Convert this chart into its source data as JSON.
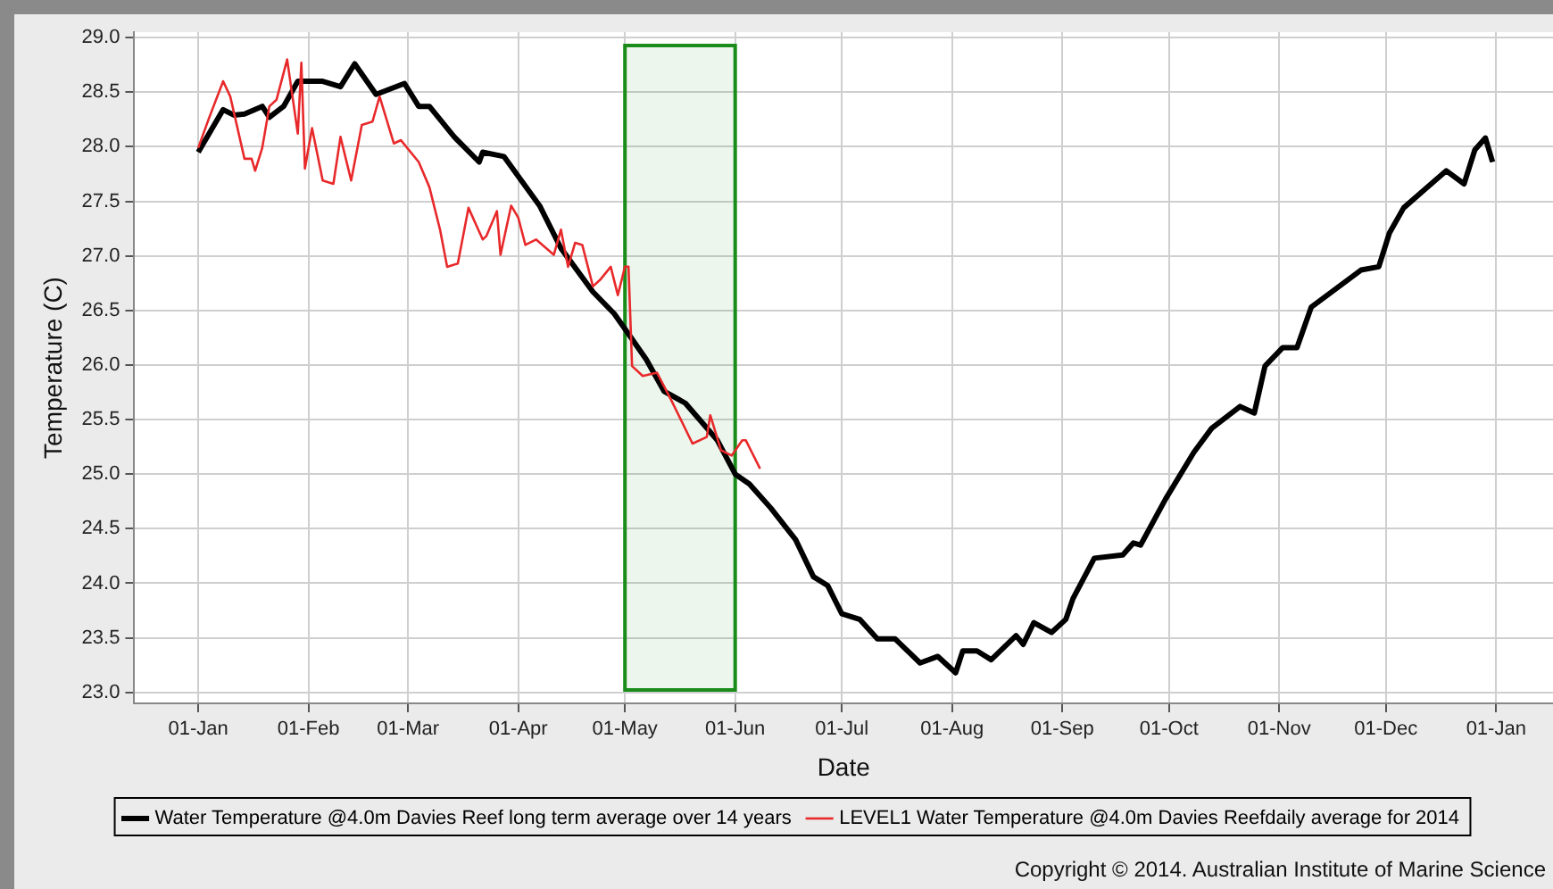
{
  "chart_data": {
    "type": "line",
    "xlabel": "Date",
    "ylabel": "Temperature (C)",
    "xlim": [
      "2013-12-14",
      "2015-01-17"
    ],
    "ylim": [
      22.9,
      29.05
    ],
    "xticks": [
      {
        "value": "2014-01-01",
        "label": "01-Jan"
      },
      {
        "value": "2014-02-01",
        "label": "01-Feb"
      },
      {
        "value": "2014-03-01",
        "label": "01-Mar"
      },
      {
        "value": "2014-04-01",
        "label": "01-Apr"
      },
      {
        "value": "2014-05-01",
        "label": "01-May"
      },
      {
        "value": "2014-06-01",
        "label": "01-Jun"
      },
      {
        "value": "2014-07-01",
        "label": "01-Jul"
      },
      {
        "value": "2014-08-01",
        "label": "01-Aug"
      },
      {
        "value": "2014-09-01",
        "label": "01-Sep"
      },
      {
        "value": "2014-10-01",
        "label": "01-Oct"
      },
      {
        "value": "2014-11-01",
        "label": "01-Nov"
      },
      {
        "value": "2014-12-01",
        "label": "01-Dec"
      },
      {
        "value": "2015-01-01",
        "label": "01-Jan"
      }
    ],
    "yticks": [
      {
        "value": 23,
        "label": "23.0"
      },
      23.5,
      {
        "value": 24,
        "label": "24.0"
      },
      24.5,
      {
        "value": 25,
        "label": "25.0"
      },
      25.5,
      {
        "value": 26,
        "label": "26.0"
      },
      26.5,
      {
        "value": 27,
        "label": "27.0"
      },
      27.5,
      {
        "value": 28,
        "label": "28.0"
      },
      28.5,
      {
        "value": 29,
        "label": "29.0"
      }
    ],
    "grid": true,
    "legend": "bottom",
    "marker": "none",
    "line_style": "solid",
    "bands": [
      {
        "axis": "x",
        "from": "2014-05-01",
        "to": "2014-06-01",
        "color": "#1a8c1a"
      }
    ],
    "annotations": [
      "Copyright © 2014. Australian Institute of Marine Science"
    ],
    "series": [
      {
        "name": "Water Temperature @4.0m Davies Reef long term average over 14 years",
        "color": "#000000",
        "x": [
          "2014-01-01",
          "2014-01-08",
          "2014-01-11",
          "2014-01-14",
          "2014-01-19",
          "2014-01-21",
          "2014-01-25",
          "2014-01-29",
          "2014-02-05",
          "2014-02-10",
          "2014-02-14",
          "2014-02-20",
          "2014-02-28",
          "2014-03-04",
          "2014-03-07",
          "2014-03-14",
          "2014-03-21",
          "2014-03-22",
          "2014-03-28",
          "2014-04-07",
          "2014-04-13",
          "2014-04-22",
          "2014-04-28",
          "2014-05-01",
          "2014-05-07",
          "2014-05-12",
          "2014-05-18",
          "2014-05-27",
          "2014-06-01",
          "2014-06-05",
          "2014-06-11",
          "2014-06-18",
          "2014-06-23",
          "2014-06-27",
          "2014-07-01",
          "2014-07-06",
          "2014-07-11",
          "2014-07-16",
          "2014-07-23",
          "2014-07-28",
          "2014-08-02",
          "2014-08-04",
          "2014-08-08",
          "2014-08-12",
          "2014-08-19",
          "2014-08-21",
          "2014-08-24",
          "2014-08-29",
          "2014-09-02",
          "2014-09-04",
          "2014-09-10",
          "2014-09-18",
          "2014-09-21",
          "2014-09-23",
          "2014-09-30",
          "2014-10-08",
          "2014-10-13",
          "2014-10-21",
          "2014-10-25",
          "2014-10-28",
          "2014-11-02",
          "2014-11-06",
          "2014-11-10",
          "2014-11-17",
          "2014-11-24",
          "2014-11-29",
          "2014-12-02",
          "2014-12-06",
          "2014-12-12",
          "2014-12-18",
          "2014-12-23",
          "2014-12-26",
          "2014-12-29",
          "2014-12-31"
        ],
        "values": [
          27.95,
          28.34,
          28.29,
          28.3,
          28.37,
          28.27,
          28.37,
          28.6,
          28.6,
          28.55,
          28.76,
          28.48,
          28.58,
          28.37,
          28.37,
          28.09,
          27.86,
          27.95,
          27.91,
          27.46,
          27.07,
          26.67,
          26.47,
          26.33,
          26.05,
          25.76,
          25.65,
          25.31,
          25.0,
          24.91,
          24.69,
          24.4,
          24.06,
          23.98,
          23.72,
          23.67,
          23.49,
          23.49,
          23.27,
          23.33,
          23.18,
          23.38,
          23.38,
          23.3,
          23.52,
          23.44,
          23.64,
          23.55,
          23.67,
          23.86,
          24.23,
          24.26,
          24.37,
          24.35,
          24.77,
          25.2,
          25.42,
          25.62,
          25.56,
          25.99,
          26.16,
          26.16,
          26.53,
          26.7,
          26.87,
          26.9,
          27.21,
          27.44,
          27.61,
          27.78,
          27.66,
          27.97,
          28.08,
          27.86
        ]
      },
      {
        "name": "LEVEL1 Water Temperature @4.0m Davies Reefdaily average for 2014",
        "color": "#e8292b",
        "x": [
          "2014-01-01",
          "2014-01-04",
          "2014-01-08",
          "2014-01-10",
          "2014-01-14",
          "2014-01-16",
          "2014-01-17",
          "2014-01-19",
          "2014-01-21",
          "2014-01-23",
          "2014-01-26",
          "2014-01-29",
          "2014-01-30",
          "2014-01-31",
          "2014-02-02",
          "2014-02-05",
          "2014-02-08",
          "2014-02-10",
          "2014-02-13",
          "2014-02-16",
          "2014-02-19",
          "2014-02-21",
          "2014-02-25",
          "2014-02-27",
          "2014-03-04",
          "2014-03-07",
          "2014-03-10",
          "2014-03-12",
          "2014-03-15",
          "2014-03-18",
          "2014-03-22",
          "2014-03-23",
          "2014-03-26",
          "2014-03-27",
          "2014-03-30",
          "2014-04-01",
          "2014-04-03",
          "2014-04-06",
          "2014-04-11",
          "2014-04-13",
          "2014-04-15",
          "2014-04-17",
          "2014-04-19",
          "2014-04-22",
          "2014-04-24",
          "2014-04-27",
          "2014-04-29",
          "2014-05-01",
          "2014-05-02",
          "2014-05-03",
          "2014-05-06",
          "2014-05-10",
          "2014-05-14",
          "2014-05-20",
          "2014-05-24",
          "2014-05-25",
          "2014-05-28",
          "2014-05-31",
          "2014-06-03",
          "2014-06-04",
          "2014-06-08"
        ],
        "values": [
          27.99,
          28.26,
          28.6,
          28.46,
          27.89,
          27.89,
          27.78,
          27.99,
          28.37,
          28.43,
          28.8,
          28.12,
          28.77,
          27.8,
          28.17,
          27.69,
          27.66,
          28.09,
          27.69,
          28.2,
          28.23,
          28.46,
          28.03,
          28.06,
          27.86,
          27.63,
          27.24,
          26.9,
          26.93,
          27.44,
          27.15,
          27.18,
          27.41,
          27.01,
          27.46,
          27.35,
          27.1,
          27.15,
          27.01,
          27.24,
          26.9,
          27.12,
          27.1,
          26.72,
          26.78,
          26.9,
          26.64,
          26.9,
          26.9,
          25.99,
          25.9,
          25.93,
          25.68,
          25.28,
          25.34,
          25.54,
          25.22,
          25.17,
          25.31,
          25.31,
          25.05
        ]
      }
    ]
  }
}
